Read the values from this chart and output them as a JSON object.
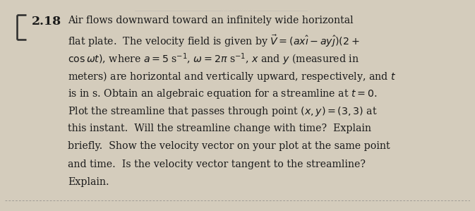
{
  "background_color": "#c8c0b0",
  "page_bg": "#d4ccbc",
  "text_color": "#1a1a1a",
  "border_color": "#2a2a2a",
  "top_line_color": "#999999",
  "bottom_line_color": "#888888",
  "number_text": "2.18",
  "number_fontsize": 12.5,
  "body_fontsize": 10.2,
  "body_text_line1": "Air flows downward toward an infinitely wide horizontal",
  "body_text_line2": "flat plate.  The velocity field is given by $\\vec{V} = (ax\\hat{\\imath} - ay\\hat{\\jmath})(2 +$",
  "body_text_line3": "$\\cos\\omega t)$, where $a = 5$ s$^{-1}$, $\\omega = 2\\pi$ s$^{-1}$, $x$ and $y$ (measured in",
  "body_text_line4": "meters) are horizontal and vertically upward, respectively, and $t$",
  "body_text_line5": "is in s. Obtain an algebraic equation for a streamline at $t = 0$.",
  "body_text_line6": "Plot the streamline that passes through point $(x, y) = (3, 3)$ at",
  "body_text_line7": "this instant.  Will the streamline change with time?  Explain",
  "body_text_line8": "briefly.  Show the velocity vector on your plot at the same point",
  "body_text_line9": "and time.  Is the velocity vector tangent to the streamline?",
  "body_text_line10": "Explain.",
  "figsize": [
    6.73,
    2.99
  ],
  "dpi": 100
}
